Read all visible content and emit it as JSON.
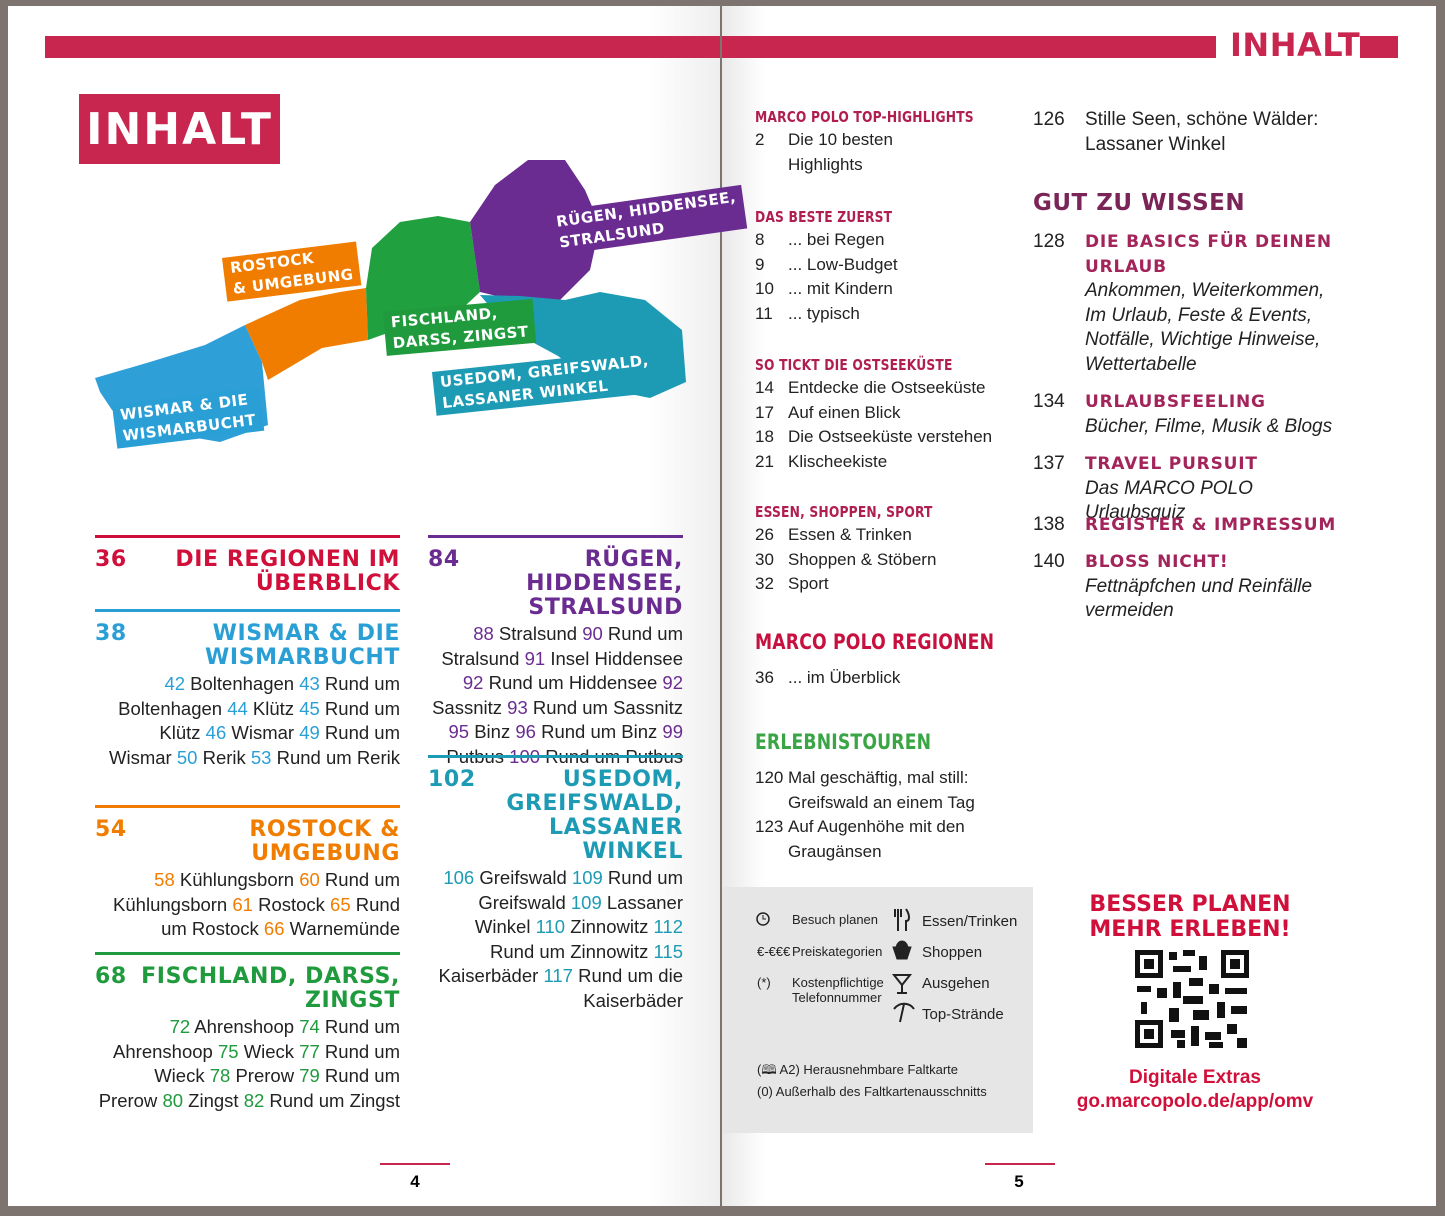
{
  "left_page": {
    "title": "INHALT",
    "map_labels": [
      {
        "lines": [
          "RÜGEN, HIDDENSEE,",
          "STRALSUND"
        ],
        "color": "#6b2c91"
      },
      {
        "lines": [
          "ROSTOCK",
          "& UMGEBUNG"
        ],
        "color": "#f07d00"
      },
      {
        "lines": [
          "FISCHLAND,",
          "DARSS, ZINGST"
        ],
        "color": "#1f9a3c"
      },
      {
        "lines": [
          "USEDOM, GREIFSWALD,",
          "LASSANER WINKEL"
        ],
        "color": "#1d9bb5"
      },
      {
        "lines": [
          "WISMAR & DIE",
          "WISMARBUCHT"
        ],
        "color": "#2a9fd6"
      }
    ],
    "regions": [
      {
        "page": 36,
        "title_lines": [
          "DIE REGIONEN IM",
          "ÜBERBLICK"
        ],
        "color": "#d0103a",
        "entries": []
      },
      {
        "page": 38,
        "title_lines": [
          "WISMAR & DIE",
          "WISMARBUCHT"
        ],
        "color": "#2a9fd6",
        "entries": [
          {
            "page": 42,
            "text": "Boltenhagen"
          },
          {
            "page": 43,
            "text": "Rund um Boltenhagen"
          },
          {
            "page": 44,
            "text": "Klütz"
          },
          {
            "page": 45,
            "text": "Rund um Klütz"
          },
          {
            "page": 46,
            "text": "Wismar"
          },
          {
            "page": 49,
            "text": "Rund um Wismar"
          },
          {
            "page": 50,
            "text": "Rerik"
          },
          {
            "page": 53,
            "text": "Rund um Rerik"
          }
        ]
      },
      {
        "page": 54,
        "title_lines": [
          "ROSTOCK &",
          "UMGEBUNG"
        ],
        "color": "#f07d00",
        "entries": [
          {
            "page": 58,
            "text": "Kühlungsborn"
          },
          {
            "page": 60,
            "text": "Rund um Kühlungsborn"
          },
          {
            "page": 61,
            "text": "Rostock"
          },
          {
            "page": 65,
            "text": "Rund um Rostock"
          },
          {
            "page": 66,
            "text": "Warnemünde"
          }
        ]
      },
      {
        "page": 68,
        "title_lines": [
          "FISCHLAND, DARSS,",
          "ZINGST"
        ],
        "color": "#1f9a3c",
        "entries": [
          {
            "page": 72,
            "text": "Ahrenshoop"
          },
          {
            "page": 74,
            "text": "Rund um Ahrenshoop"
          },
          {
            "page": 75,
            "text": "Wieck"
          },
          {
            "page": 77,
            "text": "Rund um Wieck"
          },
          {
            "page": 78,
            "text": "Prerow"
          },
          {
            "page": 79,
            "text": "Rund um Prerow"
          },
          {
            "page": 80,
            "text": "Zingst"
          },
          {
            "page": 82,
            "text": "Rund um Zingst"
          }
        ]
      },
      {
        "page": 84,
        "title_lines": [
          "RÜGEN, HIDDENSEE,",
          "STRALSUND"
        ],
        "color": "#6b2c91",
        "entries": [
          {
            "page": 88,
            "text": "Stralsund"
          },
          {
            "page": 90,
            "text": "Rund um Stralsund"
          },
          {
            "page": 91,
            "text": "Insel Hiddensee"
          },
          {
            "page": 92,
            "text": "Rund um Hiddensee"
          },
          {
            "page": 92,
            "text": "Sassnitz"
          },
          {
            "page": 93,
            "text": "Rund um Sassnitz"
          },
          {
            "page": 95,
            "text": "Binz"
          },
          {
            "page": 96,
            "text": "Rund um Binz"
          },
          {
            "page": 99,
            "text": "Putbus"
          },
          {
            "page": 100,
            "text": "Rund um Putbus"
          }
        ]
      },
      {
        "page": 102,
        "title_lines": [
          "USEDOM,",
          "GREIFSWALD,",
          "LASSANER WINKEL"
        ],
        "color": "#1d9bb5",
        "entries": [
          {
            "page": 106,
            "text": "Greifswald"
          },
          {
            "page": 109,
            "text": "Rund um Greifswald"
          },
          {
            "page": 109,
            "text": "Lassaner Winkel"
          },
          {
            "page": 110,
            "text": "Zinnowitz"
          },
          {
            "page": 112,
            "text": "Rund um Zinnowitz"
          },
          {
            "page": 115,
            "text": "Kaiserbäder"
          },
          {
            "page": 117,
            "text": "Rund um die Kaiserbäder"
          }
        ]
      }
    ],
    "page_number": 4
  },
  "right_page": {
    "header": "INHALT",
    "sections": [
      {
        "heading": "MARCO POLO TOP-HIGHLIGHTS",
        "color": "#b01e4f",
        "entries": [
          {
            "page": 2,
            "lines": [
              "Die 10 besten",
              "Highlights"
            ]
          }
        ]
      },
      {
        "heading": "DAS BESTE ZUERST",
        "color": "#b01e4f",
        "entries": [
          {
            "page": 8,
            "lines": [
              "... bei Regen"
            ]
          },
          {
            "page": 9,
            "lines": [
              "... Low-Budget"
            ]
          },
          {
            "page": 10,
            "lines": [
              "... mit Kindern"
            ]
          },
          {
            "page": 11,
            "lines": [
              "... typisch"
            ]
          }
        ]
      },
      {
        "heading": "SO TICKT DIE OSTSEEKÜSTE",
        "color": "#b01e4f",
        "entries": [
          {
            "page": 14,
            "lines": [
              "Entdecke die Ostseeküste"
            ]
          },
          {
            "page": 17,
            "lines": [
              "Auf einen Blick"
            ]
          },
          {
            "page": 18,
            "lines": [
              "Die Ostseeküste verstehen"
            ]
          },
          {
            "page": 21,
            "lines": [
              "Klischeekiste"
            ]
          }
        ]
      },
      {
        "heading": "ESSEN, SHOPPEN, SPORT",
        "color": "#b01e4f",
        "entries": [
          {
            "page": 26,
            "lines": [
              "Essen & Trinken"
            ]
          },
          {
            "page": 30,
            "lines": [
              "Shoppen & Stöbern"
            ]
          },
          {
            "page": 32,
            "lines": [
              "Sport"
            ]
          }
        ]
      },
      {
        "heading": "MARCO POLO REGIONEN",
        "color": "#c8103f",
        "entries": [
          {
            "page": 36,
            "lines": [
              "... im Überblick"
            ]
          }
        ]
      },
      {
        "heading": "ERLEBNISTOUREN",
        "color": "#3aa544",
        "entries": [
          {
            "page": 120,
            "lines": [
              "Mal geschäftig, mal still:",
              "Greifswald an einem Tag"
            ]
          },
          {
            "page": 123,
            "lines": [
              "Auf Augenhöhe mit den",
              "Graugänsen"
            ]
          }
        ]
      }
    ],
    "continued_entry": {
      "page": 126,
      "lines": [
        "Stille Seen, schöne Wälder:",
        "Lassaner Winkel"
      ]
    },
    "know_heading": "GUT ZU WISSEN",
    "know_entries": [
      {
        "page": 128,
        "title_lines": [
          "DIE BASICS FÜR DEINEN",
          "URLAUB"
        ],
        "subtitle_lines": [
          "Ankommen, Weiterkommen,",
          "Im Urlaub, Feste & Events,",
          "Notfälle, Wichtige Hinweise,",
          "Wettertabelle"
        ]
      },
      {
        "page": 134,
        "title_lines": [
          "URLAUBSFEELING"
        ],
        "subtitle_lines": [
          "Bücher, Filme, Musik & Blogs"
        ]
      },
      {
        "page": 137,
        "title_lines": [
          "TRAVEL PURSUIT"
        ],
        "subtitle_lines": [
          "Das MARCO POLO Urlaubsquiz"
        ]
      },
      {
        "page": 138,
        "title_lines": [
          "REGISTER & IMPRESSUM"
        ]
      },
      {
        "page": 140,
        "title_lines": [
          "BLOSS NICHT!"
        ],
        "subtitle_lines": [
          "Fettnäpfchen und Reinfälle",
          "vermeiden"
        ]
      }
    ],
    "legend": {
      "plan": "Besuch planen",
      "food": "Essen/Trinken",
      "price_symbol": "€-€€€",
      "price": "Preiskategorien",
      "shop": "Shoppen",
      "phone_symbol": "(*)",
      "phone": "Kostenpflichtige Telefonnummer",
      "nightlife": "Ausgehen",
      "beaches": "Top-Strände",
      "map_ref": "(🕮 A2) Herausnehmbare Faltkarte",
      "outside": "(0) Außerhalb des Faltkartenausschnitts"
    },
    "promo": {
      "lines": [
        "BESSER PLANEN",
        "MEHR ERLEBEN!"
      ],
      "caption": "Digitale Extras",
      "url": "go.marcopolo.de/app/omv"
    },
    "page_number": 5
  }
}
